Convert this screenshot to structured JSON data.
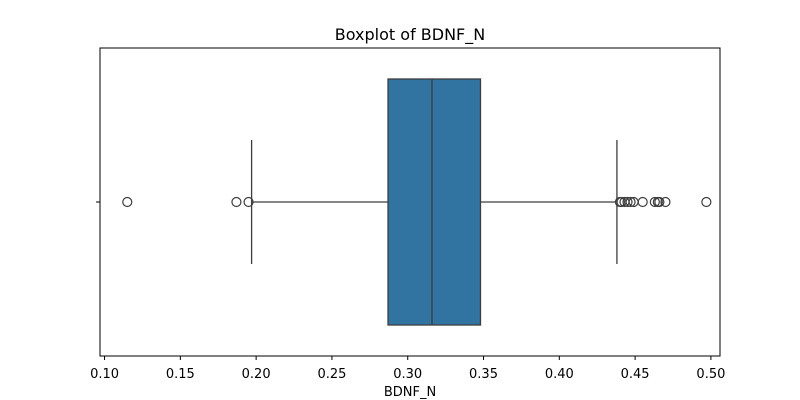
{
  "chart_data": {
    "type": "boxplot",
    "title": "Boxplot of BDNF_N",
    "xlabel": "BDNF_N",
    "ylabel": "",
    "orientation": "horizontal",
    "xlim": [
      0.097,
      0.506
    ],
    "xticks": [
      0.1,
      0.15,
      0.2,
      0.25,
      0.3,
      0.35,
      0.4,
      0.45,
      0.5
    ],
    "xtick_labels": [
      "0.10",
      "0.15",
      "0.20",
      "0.25",
      "0.30",
      "0.35",
      "0.40",
      "0.45",
      "0.50"
    ],
    "box": {
      "whisker_low": 0.197,
      "q1": 0.287,
      "median": 0.316,
      "q3": 0.348,
      "whisker_high": 0.438
    },
    "outliers": [
      0.115,
      0.187,
      0.195,
      0.44,
      0.441,
      0.443,
      0.445,
      0.447,
      0.449,
      0.455,
      0.463,
      0.465,
      0.466,
      0.47,
      0.497
    ],
    "grid": false,
    "colors": {
      "box_fill": "#3274a1",
      "line": "#3d3d3d"
    }
  }
}
